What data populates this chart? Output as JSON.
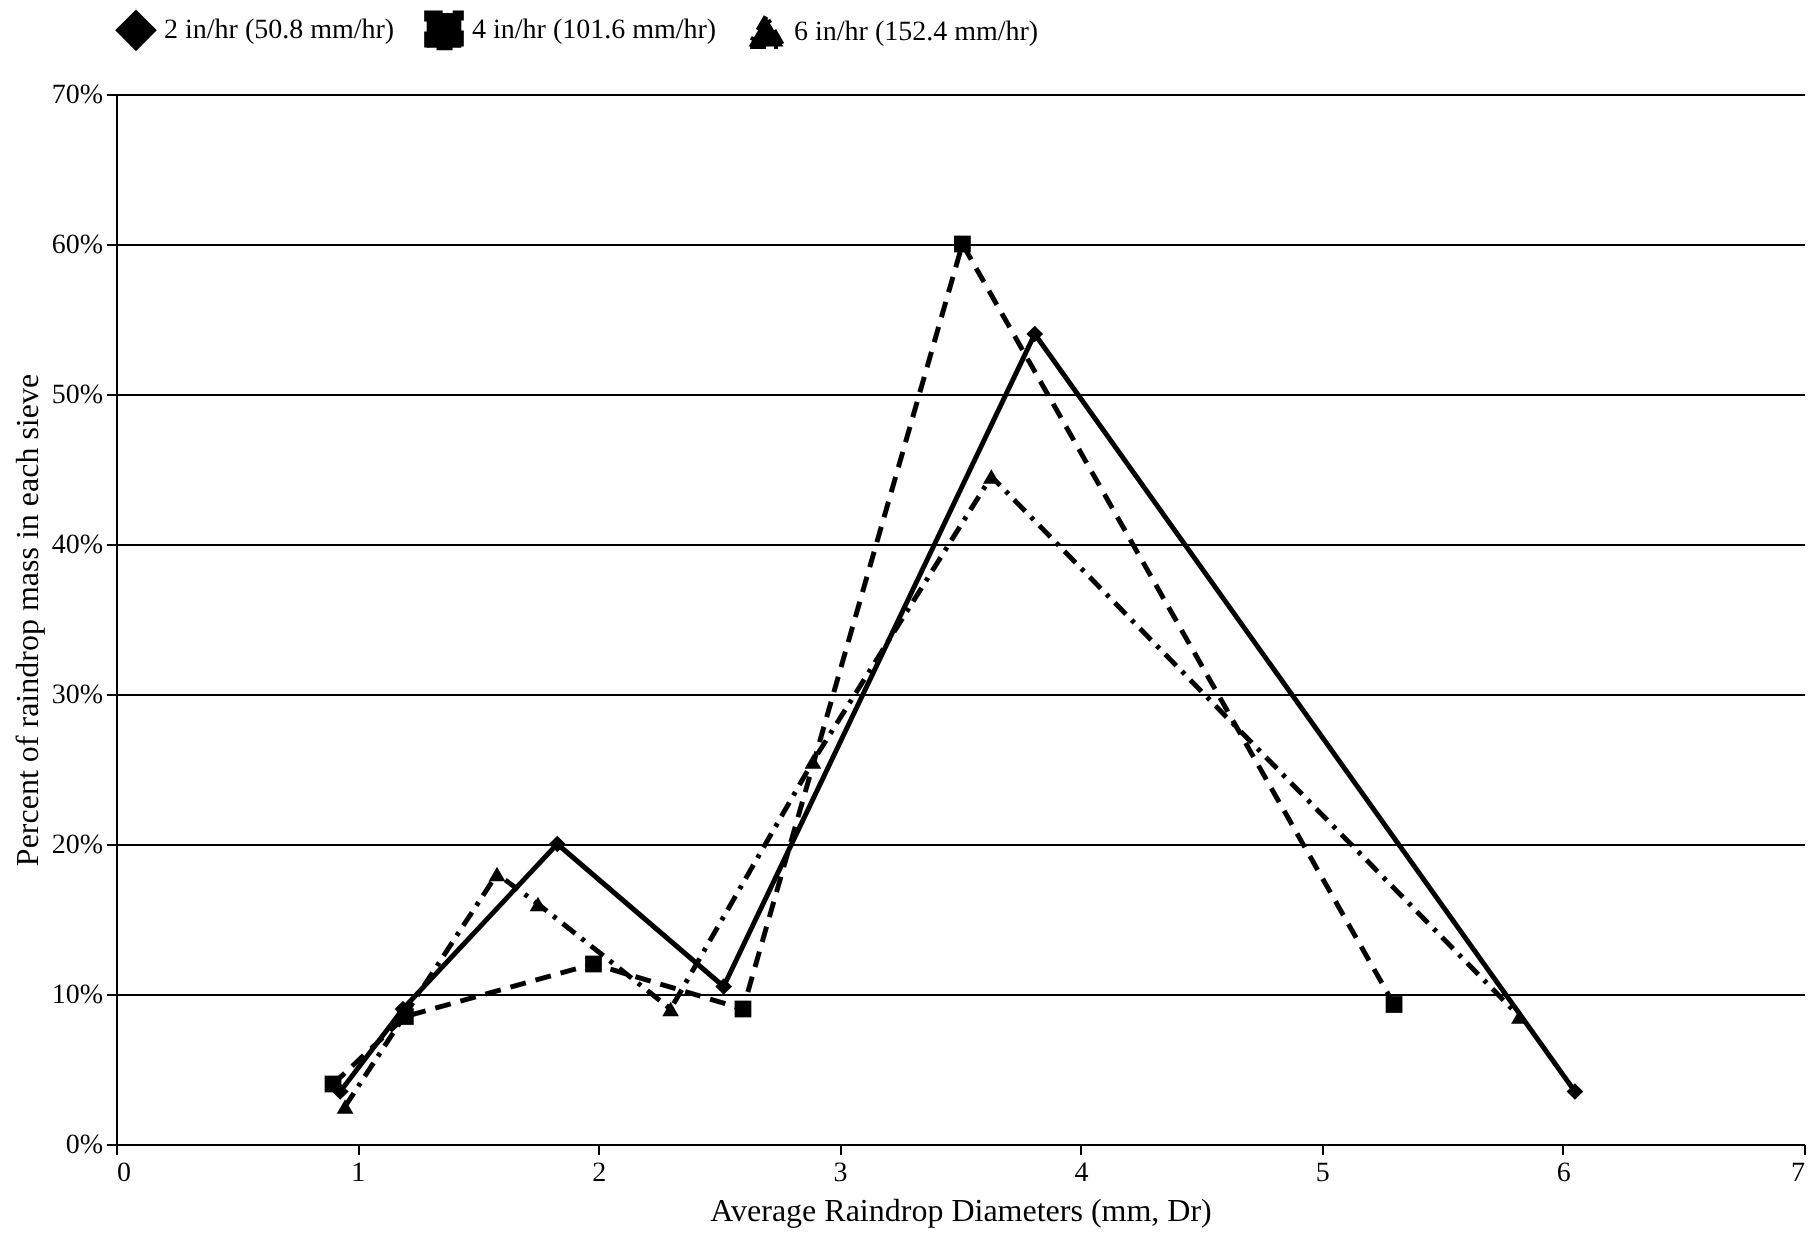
{
  "chart_data": {
    "type": "line",
    "xlabel": "Average Raindrop Diameters (mm, Dr)",
    "ylabel": "Percent of raindrop mass in each sieve",
    "xlim": [
      0,
      7
    ],
    "xticks": [
      0,
      1,
      2,
      3,
      4,
      5,
      6,
      7
    ],
    "ylim": [
      0,
      70
    ],
    "yticks": [
      {
        "value": 0,
        "label": "0%"
      },
      {
        "value": 10,
        "label": "10%"
      },
      {
        "value": 20,
        "label": "20%"
      },
      {
        "value": 30,
        "label": "30%"
      },
      {
        "value": 40,
        "label": "40%"
      },
      {
        "value": 50,
        "label": "50%"
      },
      {
        "value": 60,
        "label": "60%"
      },
      {
        "value": 70,
        "label": "70%"
      }
    ],
    "grid": "y",
    "legend": "top",
    "series": [
      {
        "name": "2 in/hr (50.8 mm/hr)",
        "color": "#000000",
        "marker": "diamond",
        "line_style": "solid",
        "x": [
          0.93,
          1.19,
          1.83,
          2.52,
          3.81,
          6.05
        ],
        "values": [
          3.5,
          9,
          20,
          10.5,
          54,
          3.5
        ]
      },
      {
        "name": "4 in/hr (101.6 mm/hr)",
        "color": "#000000",
        "marker": "square",
        "line_style": "dashed",
        "x": [
          0.9,
          1.2,
          1.98,
          2.6,
          3.51,
          5.3
        ],
        "values": [
          4,
          8.5,
          12,
          9,
          60,
          9.3
        ]
      },
      {
        "name": "6 in/hr (152.4 mm/hr)",
        "color": "#000000",
        "marker": "triangle",
        "line_style": "dotted",
        "x": [
          0.95,
          1.58,
          1.75,
          2.3,
          2.89,
          3.63,
          5.82
        ],
        "values": [
          2.5,
          18,
          16,
          9,
          25.5,
          44.5,
          8.5
        ]
      }
    ]
  }
}
